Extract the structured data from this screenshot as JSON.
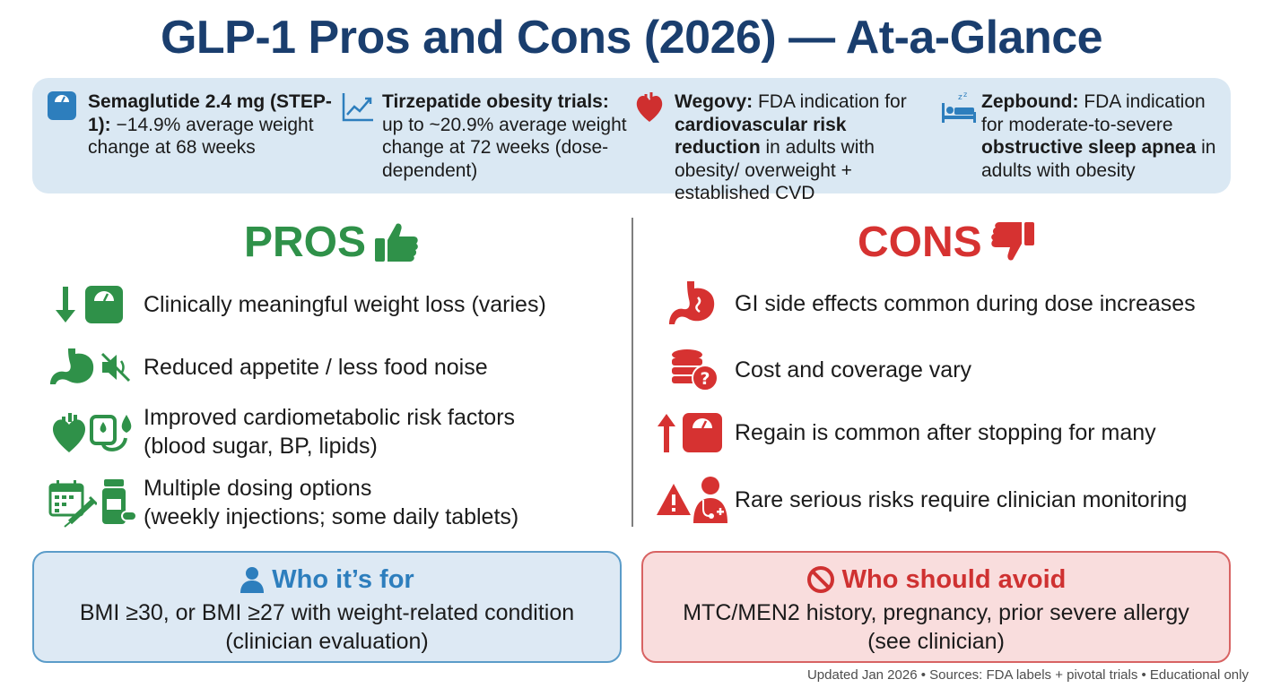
{
  "title": "GLP-1 Pros and Cons (2026) — At-a-Glance",
  "facts": [
    {
      "icon": "scale-icon",
      "bold": "Semaglutide 2.4 mg (STEP-1):",
      "rest": " −14.9% average weight change at 68 weeks",
      "tail": ""
    },
    {
      "icon": "trend-chart-icon",
      "bold": "Tirzepatide obesity trials:",
      "rest": " up to ~20.9% average weight change at 72 weeks (dose-dependent)",
      "tail": ""
    },
    {
      "icon": "heart-icon",
      "bold": "Wegovy:",
      "rest": " FDA indication for ",
      "bold2": "cardiovascular risk reduction",
      "tail": " in adults with obesity/ overweight + established CVD"
    },
    {
      "icon": "sleep-bed-icon",
      "bold": "Zepbound:",
      "rest": " FDA indication for moderate-to-severe ",
      "bold2": "obstructive sleep apnea",
      "tail": " in adults with obesity"
    }
  ],
  "pros": {
    "heading": "PROS",
    "items": [
      {
        "label": "Clinically meaningful weight loss (varies)",
        "icons": [
          "down-arrow-icon",
          "scale-icon"
        ]
      },
      {
        "label": "Reduced appetite / less food noise",
        "icons": [
          "stomach-icon",
          "muted-speaker-icon"
        ]
      },
      {
        "label": "Improved cardiometabolic risk factors",
        "label2": "(blood sugar, BP, lipids)",
        "icons": [
          "heart-icon",
          "blood-pressure-monitor-icon"
        ]
      },
      {
        "label": "Multiple dosing options",
        "label2": "(weekly injections; some daily tablets)",
        "icons": [
          "calendar-syringe-icon",
          "pill-bottle-icon"
        ]
      }
    ]
  },
  "cons": {
    "heading": "CONS",
    "items": [
      {
        "label": "GI side effects common during dose increases",
        "icons": [
          "stomach-icon"
        ]
      },
      {
        "label": "Cost and coverage vary",
        "icons": [
          "coins-question-icon"
        ]
      },
      {
        "label": "Regain is common after stopping for many",
        "icons": [
          "up-arrow-icon",
          "scale-icon"
        ]
      },
      {
        "label": "Rare serious risks require clinician monitoring",
        "icons": [
          "warning-icon",
          "doctor-icon"
        ]
      }
    ]
  },
  "who_for": {
    "heading": "Who it’s for",
    "line1": "BMI ≥30, or BMI ≥27 with weight-related condition",
    "line2": "(clinician evaluation)"
  },
  "who_avoid": {
    "heading": "Who should avoid",
    "line1": "MTC/MEN2 history, pregnancy, prior severe allergy",
    "line2": "(see clinician)"
  },
  "footer": "Updated Jan 2026 • Sources: FDA labels + pivotal trials • Educational only",
  "colors": {
    "title": "#1a3e6e",
    "pros": "#2f9149",
    "cons": "#d63231",
    "info_blue": "#2d7ebd",
    "facts_bg": "#dae8f3"
  }
}
